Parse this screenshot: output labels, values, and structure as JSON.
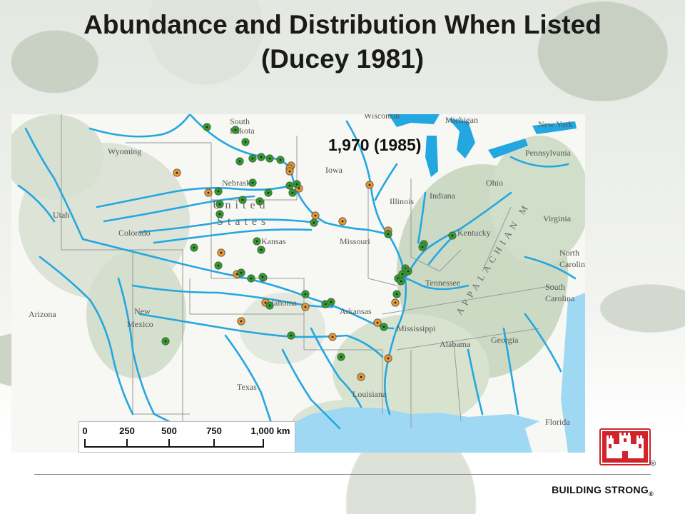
{
  "title": {
    "line1": "Abundance and Distribution When Listed",
    "line2": "(Ducey 1981)"
  },
  "annotation": "1,970 (1985)",
  "scale_bar": {
    "labels": [
      "0",
      "250",
      "500",
      "750",
      "1,000 km"
    ],
    "values_km": [
      0,
      250,
      500,
      750,
      1000
    ]
  },
  "map_labels": {
    "states": [
      "South",
      "Dakota",
      "Wyoming",
      "Nebraska",
      "Iowa",
      "Illinois",
      "Indiana",
      "Ohio",
      "Utah",
      "Colorado",
      "Kansas",
      "Missouri",
      "Kentucky",
      "Virginia",
      "Oklahoma",
      "Arkansas",
      "Tennessee",
      "North",
      "Carolina",
      "South",
      "Carolina",
      "Arizona",
      "New",
      "Mexico",
      "Texas",
      "Mississippi",
      "Alabama",
      "Georgia",
      "Louisiana",
      "Florida",
      "Michigan",
      "Wisconsin",
      "New York",
      "Pennsylvania"
    ],
    "country": [
      "United",
      "States"
    ],
    "mountains": "APPALACHIAN M"
  },
  "legend_colors": {
    "green_site": "#2e9e2a",
    "orange_site": "#e8962e",
    "river": "#23a7e0"
  },
  "logo": {
    "icon": "castle-icon",
    "registered": "®"
  },
  "footer": {
    "text": "BUILDING STRONG",
    "mark": "®"
  }
}
